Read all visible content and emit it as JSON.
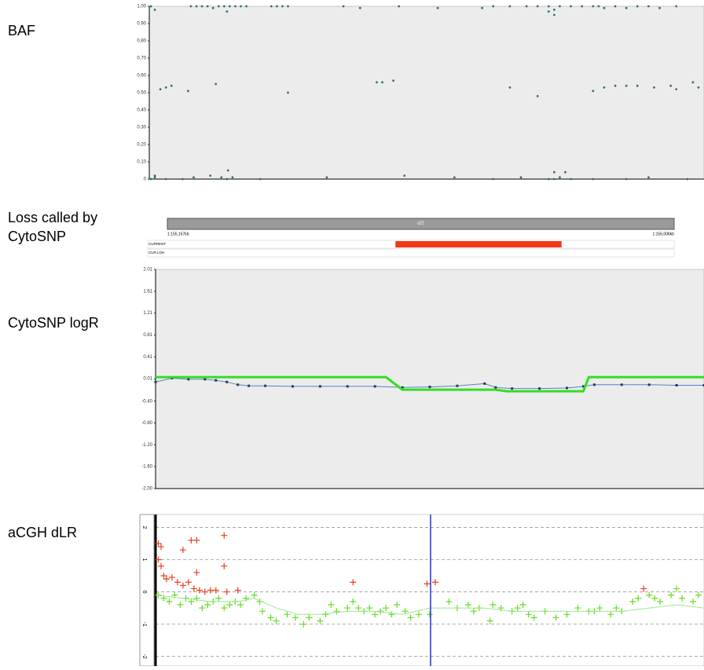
{
  "chart_data": [
    {
      "type": "scatter",
      "title": "BAF",
      "xlim": [
        0,
        100
      ],
      "ylim": [
        0,
        1
      ],
      "yticks": [
        {
          "value": 0,
          "label": "0"
        },
        {
          "value": 0.1,
          "label": "0.10"
        },
        {
          "value": 0.2,
          "label": "0.20"
        },
        {
          "value": 0.3,
          "label": "0.30"
        },
        {
          "value": 0.4,
          "label": "0.40"
        },
        {
          "value": 0.5,
          "label": "0.50"
        },
        {
          "value": 0.6,
          "label": "0.60"
        },
        {
          "value": 0.7,
          "label": "0.70"
        },
        {
          "value": 0.8,
          "label": "0.80"
        },
        {
          "value": 0.9,
          "label": "0.90"
        },
        {
          "value": 1,
          "label": "1.00"
        }
      ],
      "series": [
        {
          "style": "points",
          "color": "#2f6f73",
          "x": [
            0.3,
            1,
            7.5,
            8.5,
            9.5,
            10.5,
            11.5,
            12.5,
            13.5,
            14.5,
            15.5,
            16.5,
            17.5,
            22,
            23,
            24,
            25,
            35,
            38,
            45,
            52,
            60,
            62,
            65,
            68,
            70,
            72,
            73,
            74,
            76,
            78,
            80,
            81,
            82,
            84,
            86,
            88,
            90,
            92,
            95,
            14,
            72,
            73,
            1,
            2,
            3,
            4,
            7,
            12,
            25,
            41,
            42,
            44,
            65,
            70,
            80,
            82,
            84,
            86,
            88,
            91,
            94,
            95,
            98,
            99,
            0.3,
            1,
            3,
            6,
            8,
            11,
            13,
            14,
            15,
            20,
            32,
            46,
            55,
            62,
            67,
            72,
            73,
            74,
            76,
            80,
            86,
            90,
            97,
            14.2,
            73,
            75
          ],
          "values": [
            1,
            0.98,
            1,
            1,
            1,
            1,
            0.99,
            1,
            1,
            1,
            1,
            1,
            1,
            1,
            1,
            1,
            1,
            1,
            0.99,
            1,
            0.99,
            0.99,
            1,
            1,
            1,
            1,
            1,
            0.98,
            1,
            1,
            1,
            1,
            1,
            0.99,
            1,
            0.99,
            1,
            1,
            0.99,
            1,
            0.97,
            0.97,
            0.95,
            0.02,
            0.52,
            0.53,
            0.54,
            0.51,
            0.55,
            0.5,
            0.56,
            0.56,
            0.57,
            0.53,
            0.48,
            0.51,
            0.53,
            0.54,
            0.54,
            0.54,
            0.53,
            0.54,
            0.52,
            0.56,
            0.53,
            0,
            0.01,
            0,
            0,
            0.01,
            0.02,
            0.01,
            0,
            0.01,
            0,
            0.01,
            0.02,
            0.01,
            0,
            0.01,
            0,
            0,
            0.01,
            0,
            0,
            0,
            0.01,
            0,
            0.05,
            0.04,
            0.04
          ]
        }
      ]
    },
    {
      "type": "segment",
      "title": "Loss called by CytoSNP",
      "band": "q22",
      "tracks": [
        "CURRENT",
        "CUR.LOH"
      ],
      "xlim": [
        155157,
        156008
      ],
      "xticks": [
        {
          "value": 155157,
          "label": "1:155,157kb"
        },
        {
          "value": 156008,
          "label": "1:156,008kb"
        }
      ],
      "segments": [
        {
          "track": "CURRENT",
          "start": 155540,
          "end": 155819,
          "color": "#f03a17"
        }
      ]
    },
    {
      "type": "line",
      "title": "CytoSNP logR",
      "xlim": [
        0,
        100
      ],
      "ylim": [
        -2.0,
        2.01
      ],
      "yticks": [
        {
          "value": -2.0,
          "label": "-2.00"
        },
        {
          "value": -1.6,
          "label": "-1.60"
        },
        {
          "value": -1.2,
          "label": "-1.20"
        },
        {
          "value": -0.8,
          "label": "-0.80"
        },
        {
          "value": -0.4,
          "label": "-0.40"
        },
        0.01,
        0.41,
        0.81,
        1.21,
        1.61,
        2.01
      ],
      "series": [
        {
          "style": "line-points",
          "color": "#5b7fc4",
          "point_color": "#1f3b5a",
          "x": [
            0,
            3,
            6,
            9,
            11,
            13,
            15,
            17,
            20,
            25,
            30,
            35,
            40,
            45,
            50,
            55,
            60,
            62,
            65,
            70,
            75,
            78,
            80,
            85,
            90,
            95,
            100
          ],
          "values": [
            -0.05,
            0.02,
            0.0,
            0.0,
            -0.02,
            -0.05,
            -0.1,
            -0.12,
            -0.12,
            -0.13,
            -0.13,
            -0.13,
            -0.13,
            -0.15,
            -0.14,
            -0.12,
            -0.08,
            -0.15,
            -0.17,
            -0.17,
            -0.16,
            -0.13,
            -0.1,
            -0.1,
            -0.1,
            -0.11,
            -0.11
          ]
        },
        {
          "style": "line",
          "color": "#33dd22",
          "x": [
            0,
            42,
            45,
            62,
            64,
            78,
            79,
            100
          ],
          "values": [
            0.04,
            0.04,
            -0.19,
            -0.19,
            -0.22,
            -0.22,
            0.04,
            0.04
          ]
        }
      ]
    },
    {
      "type": "scatter",
      "title": "aCGH dLR",
      "xlim": [
        0,
        100
      ],
      "ylim": [
        -2.3,
        2.4
      ],
      "yticks": [
        -2,
        -1,
        0,
        1,
        2
      ],
      "grid": true,
      "series": [
        {
          "style": "cross",
          "color": "#e8401c",
          "x": [
            0.5,
            1,
            5,
            6.5,
            7.5,
            12.5,
            0.5,
            1,
            1.5,
            2,
            3,
            4,
            5,
            6,
            7,
            8,
            9,
            10,
            11,
            13,
            15,
            7.5,
            12.5,
            36,
            49.5,
            51,
            89
          ],
          "values": [
            1.5,
            1.4,
            1.3,
            1.6,
            1.6,
            1.75,
            1.0,
            0.8,
            0.5,
            0.4,
            0.45,
            0.3,
            0.2,
            0.3,
            0.1,
            0.05,
            0.0,
            0.05,
            0.05,
            0.0,
            0.05,
            0.6,
            0.8,
            0.3,
            0.25,
            0.3,
            0.1
          ]
        },
        {
          "style": "cross",
          "color": "#66dd22",
          "x": [
            0.5,
            1.5,
            2.5,
            3.5,
            4.5,
            5.5,
            6.5,
            7.5,
            8.5,
            9.5,
            10.5,
            11.5,
            12.5,
            13.5,
            14.5,
            15.5,
            16.5,
            18,
            19,
            19.5,
            21,
            22,
            24,
            25.5,
            27,
            28,
            30,
            31,
            32,
            33,
            35,
            36,
            37,
            38,
            39,
            40,
            41,
            42,
            43,
            44,
            45.5,
            46.5,
            48,
            50,
            53.5,
            55,
            57,
            58,
            59,
            61,
            61.5,
            63,
            65,
            66,
            67,
            68,
            69,
            71,
            73,
            75,
            77,
            79,
            80,
            81,
            83,
            84,
            85,
            87,
            88,
            90,
            91,
            92,
            94,
            95,
            96,
            98,
            99
          ],
          "values": [
            -0.1,
            -0.2,
            -0.3,
            -0.1,
            -0.4,
            -0.2,
            -0.3,
            -0.2,
            -0.5,
            -0.4,
            -0.3,
            -0.2,
            -0.5,
            -0.4,
            -0.3,
            -0.4,
            -0.2,
            -0.1,
            -0.3,
            -0.6,
            -0.8,
            -0.9,
            -0.7,
            -0.8,
            -1.0,
            -0.8,
            -0.9,
            -0.7,
            -0.4,
            -0.6,
            -0.5,
            -0.3,
            -0.5,
            -0.6,
            -0.5,
            -0.7,
            -0.6,
            -0.5,
            -0.7,
            -0.4,
            -0.6,
            -0.8,
            -0.7,
            -0.7,
            -0.3,
            -0.5,
            -0.4,
            -0.6,
            -0.5,
            -0.9,
            -0.4,
            -0.5,
            -0.6,
            -0.5,
            -0.4,
            -0.7,
            -0.8,
            -0.6,
            -0.8,
            -0.7,
            -0.5,
            -0.6,
            -0.6,
            -0.5,
            -0.7,
            -0.5,
            -0.6,
            -0.3,
            -0.2,
            -0.1,
            -0.2,
            -0.3,
            -0.1,
            0.1,
            -0.2,
            -0.3,
            -0.1
          ]
        },
        {
          "style": "line",
          "color": "#99e890",
          "x": [
            0,
            5,
            10,
            15,
            18,
            22,
            26,
            30,
            35,
            40,
            45,
            50,
            55,
            60,
            65,
            70,
            75,
            80,
            85,
            90,
            95,
            100
          ],
          "values": [
            -0.1,
            -0.2,
            -0.3,
            -0.3,
            -0.2,
            -0.5,
            -0.7,
            -0.7,
            -0.6,
            -0.6,
            -0.7,
            -0.5,
            -0.5,
            -0.5,
            -0.6,
            -0.6,
            -0.6,
            -0.6,
            -0.6,
            -0.5,
            -0.4,
            -0.5
          ]
        }
      ]
    }
  ]
}
